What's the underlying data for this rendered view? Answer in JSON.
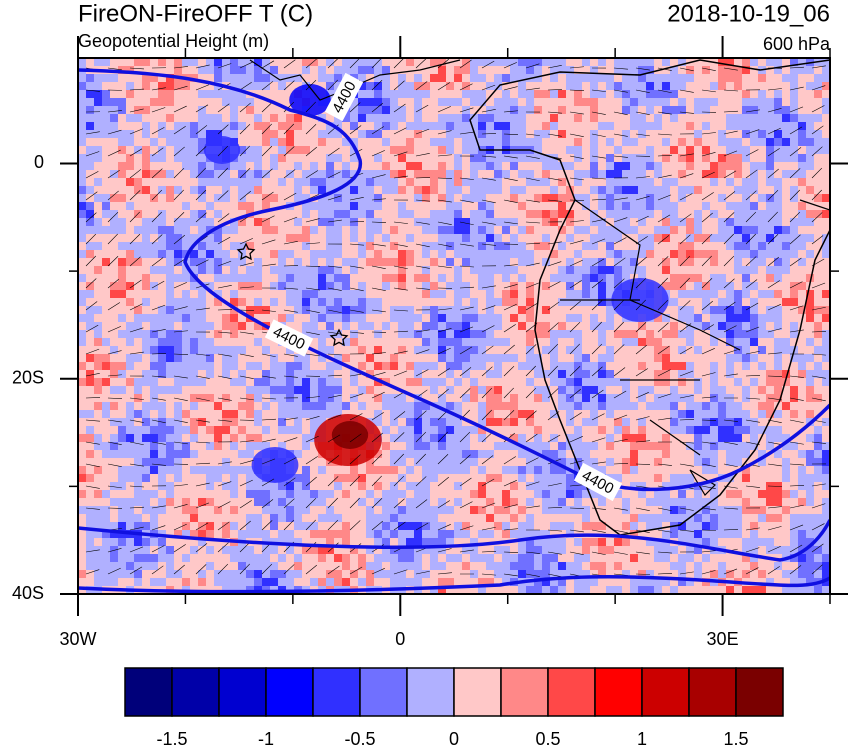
{
  "header": {
    "title": "FireON-FireOFF T (C)",
    "subtitle": "Geopotential Height (m)",
    "date": "2018-10-19_06",
    "level": "600 hPa"
  },
  "map": {
    "xlim": [
      -30,
      40
    ],
    "ylim": [
      -40,
      9.8
    ],
    "xticks": [
      {
        "value": -30,
        "label": "30W"
      },
      0,
      {
        "value": 30,
        "label": "30E"
      }
    ],
    "xminor_ticks": [
      -20,
      -10,
      10,
      20,
      40
    ],
    "yticks": [
      0,
      {
        "value": -20,
        "label": "20S"
      },
      {
        "value": -40,
        "label": "40S"
      }
    ],
    "yminor_ticks": [
      -10,
      -30
    ],
    "contour_labels": [
      "4400",
      "4400",
      "4400"
    ]
  },
  "colorbar": {
    "lim": [
      -1.75,
      1.75
    ],
    "colors": [
      "#00007a",
      "#0000a8",
      "#0000d0",
      "#0000ff",
      "#3030ff",
      "#7070ff",
      "#b0b0ff",
      "#ffc8c8",
      "#ff8888",
      "#ff4848",
      "#ff0000",
      "#cc0000",
      "#a80000",
      "#7a0000"
    ],
    "ticks": [
      -1.5,
      -1,
      -0.5,
      0,
      0.5,
      1,
      1.5
    ]
  }
}
